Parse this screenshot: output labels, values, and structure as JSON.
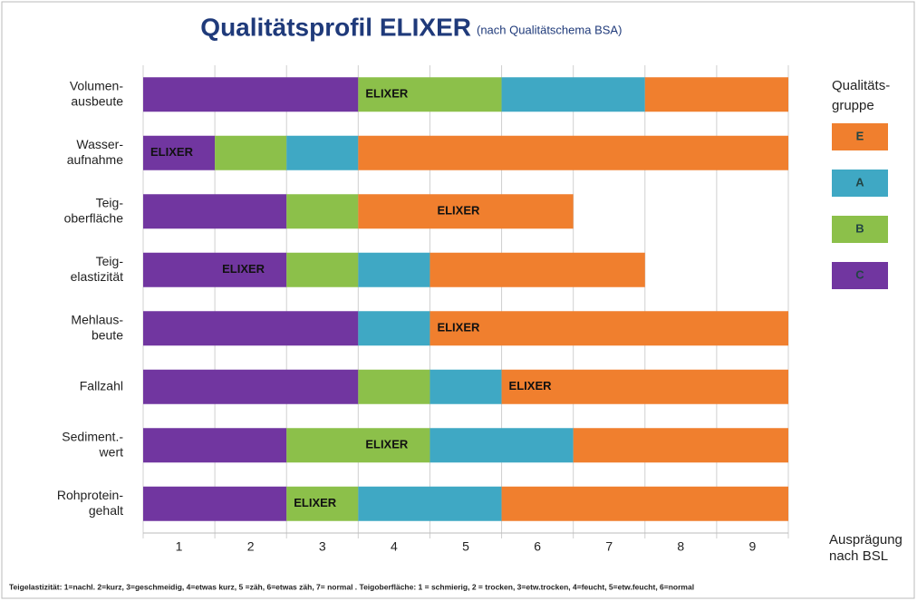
{
  "chart_data": {
    "type": "stacked-barh",
    "title": "Qualitätsprofil  ELIXER",
    "subtitle": "(nach Qualitätschema BSA)",
    "categories": [
      [
        "Volumen-",
        "ausbeute"
      ],
      [
        "Wasser-",
        "aufnahme"
      ],
      [
        "Teig-",
        "oberfläche"
      ],
      [
        "Teig-",
        "elastizität"
      ],
      [
        "Mehlaus-",
        "beute"
      ],
      [
        "Fallzahl"
      ],
      [
        "Sediment.-",
        "wert"
      ],
      [
        "Rohprotein-",
        "gehalt"
      ]
    ],
    "series": [
      {
        "name": "C",
        "color": "#7136a0",
        "values": [
          3,
          1,
          2,
          2,
          3,
          3,
          2,
          2
        ]
      },
      {
        "name": "B",
        "color": "#8cc04a",
        "values": [
          2,
          1,
          1,
          1,
          0,
          1,
          2,
          1
        ]
      },
      {
        "name": "A",
        "color": "#3fa8c4",
        "values": [
          2,
          1,
          0,
          1,
          1,
          1,
          2,
          2
        ]
      },
      {
        "name": "E",
        "color": "#f07f2e",
        "values": [
          2,
          6,
          3,
          3,
          5,
          4,
          3,
          4
        ]
      }
    ],
    "marker_label": "ELIXER",
    "marker_positions": [
      4,
      1,
      5,
      2,
      5,
      6,
      4,
      3
    ],
    "xlim": [
      0.5,
      9.5
    ],
    "xticks": [
      1,
      2,
      3,
      4,
      5,
      6,
      7,
      8,
      9
    ],
    "xlabel": [
      "Ausprägung",
      "nach BSL"
    ],
    "legend_title": [
      "Qualitäts-",
      "gruppe"
    ],
    "grid": true,
    "footnote": "Teigelastizität: 1=nachl. 2=kurz, 3=geschmeidig, 4=etwas kurz, 5 =zäh,  6=etwas zäh, 7= normal .  Teigoberfläche: 1 = schmierig, 2 = trocken, 3=etw.trocken, 4=feucht, 5=etw.feucht,  6=normal"
  }
}
